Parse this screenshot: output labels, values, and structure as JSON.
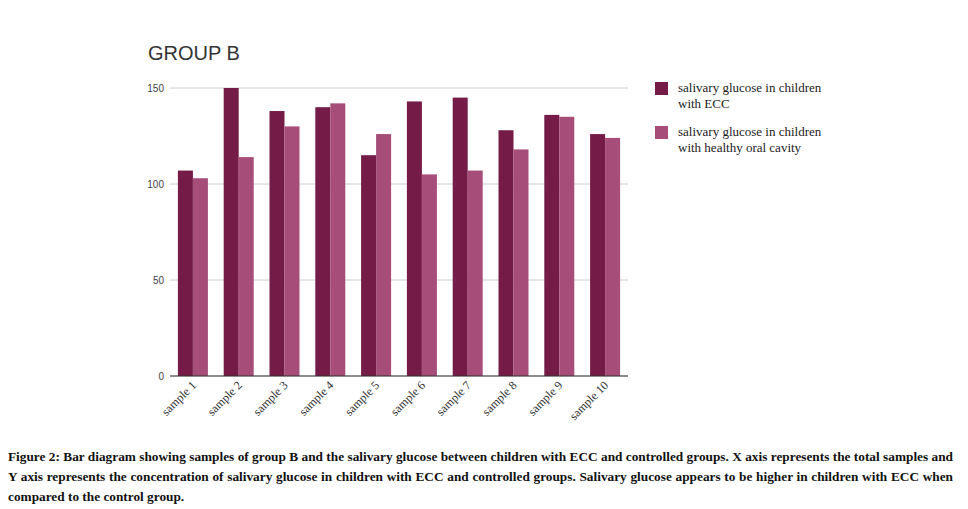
{
  "chart_data": {
    "type": "bar",
    "title": "GROUP B",
    "categories": [
      "sample 1",
      "sample 2",
      "sample 3",
      "sample 4",
      "sample 5",
      "sample 6",
      "sample 7",
      "sample 8",
      "sample 9",
      "sample 10"
    ],
    "series": [
      {
        "name": "salivary glucose in children with ECC",
        "color": "#741b47",
        "values": [
          107,
          150,
          138,
          140,
          115,
          143,
          145,
          128,
          136,
          126
        ]
      },
      {
        "name": "salivary glucose in children with healthy oral cavity",
        "color": "#a64d79",
        "values": [
          103,
          114,
          130,
          142,
          126,
          105,
          107,
          118,
          135,
          124
        ]
      }
    ],
    "ylim": [
      0,
      150
    ],
    "yticks": [
      0,
      50,
      100,
      150
    ],
    "grid": true,
    "legend": "top-right",
    "caption": "Figure 2: Bar diagram showing samples of group B and the salivary glucose between children with ECC and controlled groups. X axis represents the total samples and Y axis represents the concentration of salivary glucose in children with ECC and controlled groups. Salivary glucose appears to be higher in children with ECC when compared to the control group."
  }
}
